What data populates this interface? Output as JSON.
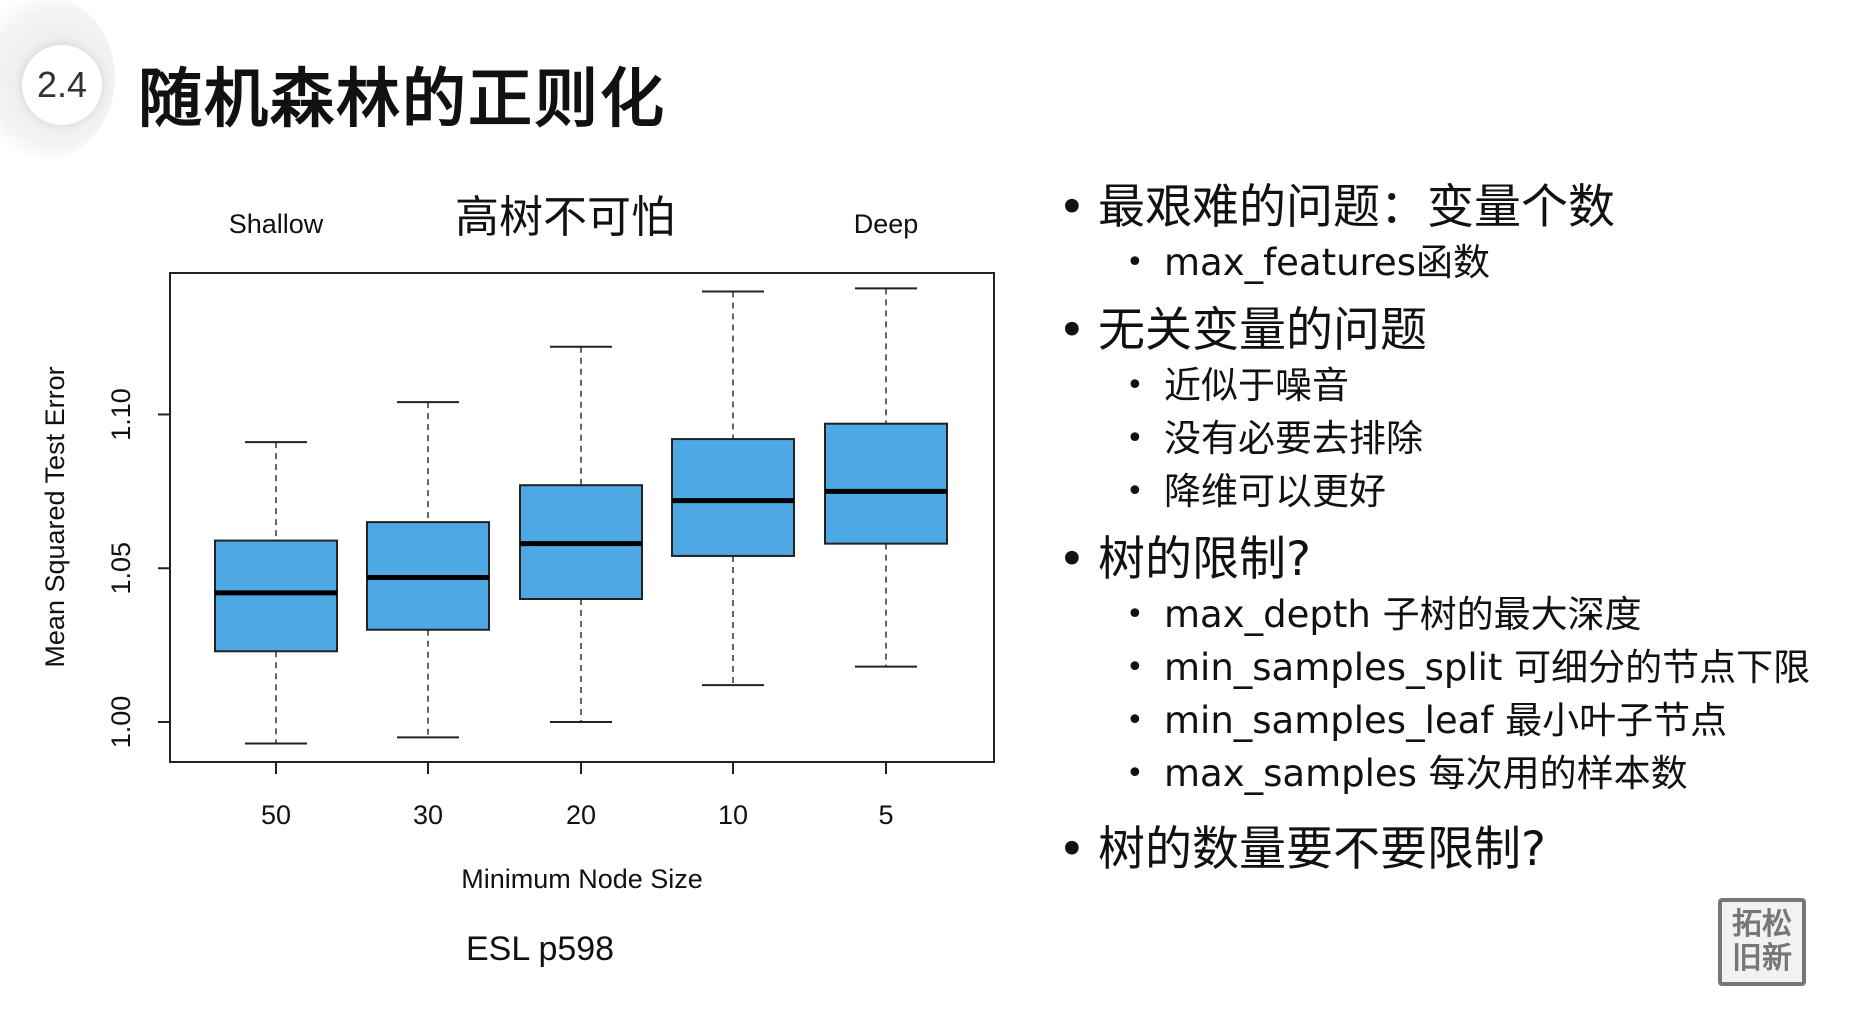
{
  "slide": {
    "section_number": "2.4",
    "title": "随机森林的正则化",
    "caption": "ESL p598",
    "logo_text": "拓松\n旧新"
  },
  "chart_data": {
    "type": "box",
    "title": "高树不可怕",
    "left_label": "Shallow",
    "right_label": "Deep",
    "xlabel": "Minimum Node Size",
    "ylabel": "Mean Squared Test Error",
    "categories": [
      "50",
      "30",
      "20",
      "10",
      "5"
    ],
    "y_ticks": [
      "1.00",
      "1.05",
      "1.10"
    ],
    "y_tick_values": [
      1.0,
      1.05,
      1.1
    ],
    "ylim": [
      0.987,
      1.146
    ],
    "box_color": "#4ea8e4",
    "boxes": [
      {
        "category": "50",
        "whisker_low": 0.993,
        "q1": 1.023,
        "median": 1.042,
        "q3": 1.059,
        "whisker_high": 1.091
      },
      {
        "category": "30",
        "whisker_low": 0.995,
        "q1": 1.03,
        "median": 1.047,
        "q3": 1.065,
        "whisker_high": 1.104
      },
      {
        "category": "20",
        "whisker_low": 1.0,
        "q1": 1.04,
        "median": 1.058,
        "q3": 1.077,
        "whisker_high": 1.122
      },
      {
        "category": "10",
        "whisker_low": 1.012,
        "q1": 1.054,
        "median": 1.072,
        "q3": 1.092,
        "whisker_high": 1.14
      },
      {
        "category": "5",
        "whisker_low": 1.018,
        "q1": 1.058,
        "median": 1.075,
        "q3": 1.097,
        "whisker_high": 1.141
      }
    ],
    "grid": false
  },
  "bullets": [
    {
      "text": "最艰难的问题：变量个数",
      "children": [
        "max_features函数"
      ]
    },
    {
      "text": "无关变量的问题",
      "children": [
        "近似于噪音",
        "没有必要去排除",
        "降维可以更好"
      ]
    },
    {
      "text": "树的限制?",
      "children": [
        "max_depth 子树的最大深度",
        "min_samples_split 可细分的节点下限",
        "min_samples_leaf 最小叶子节点",
        "max_samples 每次用的样本数"
      ]
    },
    {
      "text": "树的数量要不要限制?",
      "children": []
    }
  ]
}
